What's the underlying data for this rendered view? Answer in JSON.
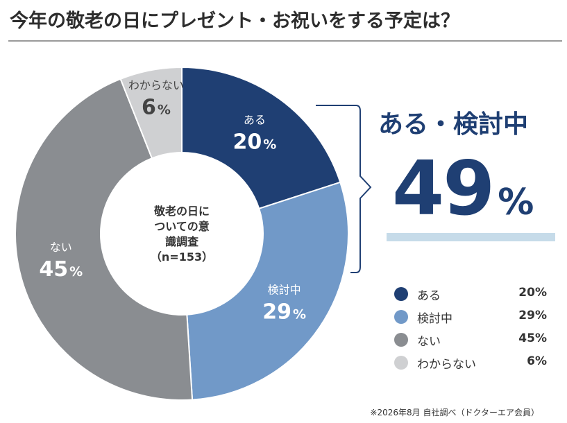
{
  "title": "今年の敬老の日にプレゼント・お祝いをする予定は？",
  "colors": {
    "background": "#ffffff",
    "title_rule": "#9a9a9a",
    "accent": "#1f3f73",
    "highlight_bar": "#c6dbe9"
  },
  "chart_data": {
    "type": "pie",
    "style": "donut",
    "center_label": [
      "敬老の日に",
      "ついての意",
      "識調査",
      "（n=153）"
    ],
    "slices": [
      {
        "label": "ある",
        "value": 20,
        "display": "20%",
        "color": "#1f3f73"
      },
      {
        "label": "検討中",
        "value": 29,
        "display": "29%",
        "color": "#7199c8"
      },
      {
        "label": "ない",
        "value": 45,
        "display": "45%",
        "color": "#8a8d91"
      },
      {
        "label": "わからない",
        "value": 6,
        "display": "6%",
        "color": "#cfd0d2"
      }
    ],
    "legend_placement": "bottom-right"
  },
  "highlight": {
    "label": "ある・検討中",
    "value": "49",
    "unit": "%"
  },
  "footnote": "※2026年8月 自社調べ（ドクターエア会員）"
}
